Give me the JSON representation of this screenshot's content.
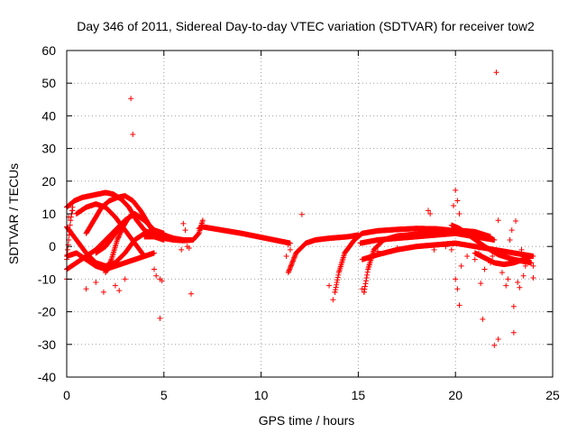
{
  "chart_data": {
    "type": "scatter",
    "title": "Day 346 of 2011, Sidereal Day-to-day VTEC variation (SDTVAR) for receiver tow2",
    "xlabel": "GPS time / hours",
    "ylabel": "SDTVAR / TECUs",
    "xlim": [
      0,
      25
    ],
    "ylim": [
      -40,
      60
    ],
    "xticks": [
      0,
      5,
      10,
      15,
      20,
      25
    ],
    "yticks": [
      -40,
      -30,
      -20,
      -10,
      0,
      10,
      20,
      30,
      40,
      50,
      60
    ],
    "grid": true,
    "marker": "+",
    "color": "#ff0000",
    "series": [
      {
        "name": "tow2",
        "points": [
          [
            3.3,
            45.3
          ],
          [
            3.4,
            34.3
          ],
          [
            22.1,
            53.3
          ],
          [
            4.8,
            -22.0
          ],
          [
            6.4,
            -14.5
          ],
          [
            4.8,
            -10.0
          ],
          [
            4.9,
            -10.5
          ],
          [
            12.1,
            9.8
          ],
          [
            13.7,
            -16.3
          ],
          [
            13.8,
            -14.0
          ],
          [
            18.6,
            11.0
          ],
          [
            18.7,
            10.0
          ],
          [
            19.9,
            12.5
          ],
          [
            20.0,
            17.2
          ],
          [
            20.1,
            14.0
          ],
          [
            20.2,
            10.0
          ],
          [
            20.1,
            -13.0
          ],
          [
            20.2,
            -18.0
          ],
          [
            20.0,
            -10.0
          ],
          [
            21.4,
            -22.3
          ],
          [
            22.0,
            -30.3
          ],
          [
            22.2,
            -28.4
          ],
          [
            23.0,
            -26.4
          ],
          [
            23.0,
            -18.4
          ],
          [
            22.6,
            -12.0
          ],
          [
            23.1,
            7.8
          ],
          [
            22.9,
            5.0
          ],
          [
            22.2,
            8.0
          ],
          [
            19.8,
            -1.0
          ],
          [
            20.3,
            -6.0
          ],
          [
            21.0,
            -4.0
          ],
          [
            21.5,
            -7.0
          ],
          [
            21.8,
            -5.0
          ],
          [
            22.4,
            -8.0
          ],
          [
            22.7,
            -10.0
          ],
          [
            23.2,
            -11.0
          ],
          [
            23.5,
            -9.0
          ],
          [
            24.0,
            -6.0
          ],
          [
            23.8,
            -3.0
          ],
          [
            23.4,
            -1.0
          ],
          [
            23.6,
            -6.0
          ],
          [
            21.9,
            -3.0
          ],
          [
            21.2,
            -2.0
          ],
          [
            20.6,
            -3.0
          ],
          [
            22.8,
            2.0
          ],
          [
            24.0,
            -9.6
          ],
          [
            23.3,
            -12.6
          ],
          [
            21.3,
            -11.3
          ],
          [
            6.0,
            7.0
          ],
          [
            6.1,
            5.0
          ],
          [
            6.2,
            0.0
          ],
          [
            5.9,
            -1.0
          ],
          [
            6.3,
            -0.5
          ],
          [
            4.9,
            3.0
          ],
          [
            4.5,
            -7.0
          ],
          [
            4.6,
            -9.0
          ],
          [
            1.0,
            -13.0
          ],
          [
            1.5,
            -11.0
          ],
          [
            1.9,
            -14.0
          ],
          [
            2.5,
            -12.0
          ],
          [
            3.0,
            -10.0
          ],
          [
            2.7,
            -13.5
          ],
          [
            0.2,
            13.0
          ],
          [
            0.3,
            11.0
          ],
          [
            0.1,
            9.0
          ],
          [
            11.4,
            0.5
          ],
          [
            11.5,
            -1.0
          ],
          [
            11.3,
            -3.0
          ],
          [
            13.5,
            -12.0
          ],
          [
            15.2,
            -13.0
          ],
          [
            15.3,
            -14.0
          ],
          [
            18.9,
            -1.0
          ],
          [
            19.5,
            0.0
          ],
          [
            17.0,
            -0.5
          ],
          [
            16.0,
            -1.5
          ]
        ],
        "tracks": [
          {
            "x": [
              6.8,
              7.0,
              8.0,
              9.0,
              10.0,
              11.0,
              11.5
            ],
            "y": [
              5.5,
              6.0,
              5.0,
              4.0,
              2.8,
              1.6,
              1.0
            ]
          },
          {
            "x": [
              11.4,
              11.8,
              12.3,
              12.8,
              13.5,
              14.5,
              15.0
            ],
            "y": [
              -8.0,
              -2.0,
              1.0,
              2.0,
              2.5,
              3.0,
              3.5
            ]
          },
          {
            "x": [
              13.8,
              14.0,
              14.3,
              14.8,
              15.2,
              16.0,
              17.0,
              18.0,
              19.0,
              19.7
            ],
            "y": [
              -14.0,
              -8.0,
              -2.0,
              2.0,
              4.0,
              4.8,
              5.2,
              5.5,
              5.4,
              5.0
            ]
          },
          {
            "x": [
              15.3,
              15.5,
              15.8,
              16.3,
              17.0,
              18.0,
              19.0,
              20.0,
              21.0,
              21.8
            ],
            "y": [
              -14.0,
              -7.0,
              -1.0,
              2.0,
              3.2,
              3.8,
              4.5,
              5.0,
              4.5,
              3.0
            ]
          },
          {
            "x": [
              15.2,
              16.0,
              17.0,
              18.0,
              19.0,
              20.0,
              21.0,
              22.0,
              23.0,
              24.0
            ],
            "y": [
              -4.0,
              -2.5,
              -1.0,
              0.0,
              0.5,
              1.0,
              0.0,
              -1.0,
              -2.0,
              -3.0
            ]
          },
          {
            "x": [
              15.1,
              16.0,
              17.0,
              18.0,
              19.0,
              20.0,
              21.0,
              22.0
            ],
            "y": [
              1.0,
              2.0,
              2.5,
              3.0,
              3.5,
              4.0,
              3.0,
              2.0
            ]
          },
          {
            "x": [
              19.8,
              20.2,
              20.8,
              21.5,
              22.2,
              23.0,
              23.9
            ],
            "y": [
              6.5,
              5.5,
              3.0,
              0.0,
              -2.5,
              -4.0,
              -5.0
            ]
          },
          {
            "x": [
              21.0,
              21.5,
              22.0,
              22.5,
              23.0,
              23.5,
              23.9
            ],
            "y": [
              -2.0,
              -3.5,
              -5.0,
              -5.5,
              -5.0,
              -4.0,
              -3.0
            ]
          },
          {
            "x": [
              0.0,
              0.5,
              1.0,
              1.5,
              2.0,
              2.5,
              3.0,
              3.5,
              4.0,
              4.5,
              5.0
            ],
            "y": [
              -7.0,
              -5.0,
              -3.0,
              -1.0,
              2.0,
              5.0,
              8.0,
              10.0,
              8.0,
              5.0,
              3.0
            ]
          },
          {
            "x": [
              0.0,
              0.4,
              0.8,
              1.2,
              1.6,
              2.0,
              2.4,
              2.8,
              3.2,
              3.6,
              4.0,
              4.5,
              5.0
            ],
            "y": [
              12.0,
              14.0,
              15.0,
              15.5,
              16.0,
              16.5,
              16.0,
              14.5,
              12.0,
              8.0,
              5.0,
              3.0,
              2.0
            ]
          },
          {
            "x": [
              0.0,
              0.5,
              1.0,
              1.5,
              2.0,
              2.5,
              3.0,
              3.5,
              4.0,
              4.5,
              5.0
            ],
            "y": [
              6.0,
              2.0,
              -2.0,
              -5.0,
              -6.0,
              -5.0,
              -2.0,
              2.0,
              4.0,
              5.0,
              4.0
            ]
          },
          {
            "x": [
              0.0,
              0.5,
              1.0,
              1.5,
              2.0,
              2.5,
              3.0,
              3.5,
              4.0,
              4.5
            ],
            "y": [
              -3.0,
              -2.0,
              -4.0,
              -6.0,
              -7.0,
              -6.0,
              -5.0,
              -4.0,
              -3.0,
              -2.0
            ]
          },
          {
            "x": [
              1.0,
              1.4,
              1.8,
              2.2,
              2.6,
              3.0,
              3.4,
              3.8,
              4.2,
              4.6
            ],
            "y": [
              4.0,
              8.0,
              12.0,
              14.0,
              15.0,
              15.5,
              14.0,
              11.0,
              7.0,
              3.0
            ]
          },
          {
            "x": [
              0.5,
              1.0,
              1.5,
              2.0,
              2.5,
              3.0,
              3.5,
              4.0
            ],
            "y": [
              10.0,
              12.0,
              13.0,
              12.0,
              9.0,
              5.0,
              1.0,
              -3.0
            ]
          },
          {
            "x": [
              1.5,
              2.0,
              2.5,
              3.0,
              3.5,
              4.0,
              4.5,
              5.0,
              5.5,
              6.0,
              6.5
            ],
            "y": [
              -2.0,
              0.0,
              4.0,
              8.0,
              10.0,
              8.0,
              5.0,
              3.5,
              2.5,
              2.0,
              2.0
            ]
          },
          {
            "x": [
              2.0,
              2.3,
              2.6,
              2.9,
              3.2,
              3.5
            ],
            "y": [
              -8.0,
              -4.0,
              2.0,
              6.0,
              9.0,
              10.0
            ]
          },
          {
            "x": [
              4.0,
              4.5,
              5.0,
              5.5,
              6.0,
              6.5,
              6.8,
              7.0
            ],
            "y": [
              3.0,
              3.0,
              2.5,
              2.0,
              1.8,
              2.0,
              4.0,
              8.0
            ]
          },
          {
            "x": [
              0.0,
              0.0,
              0.1,
              0.2,
              0.3
            ],
            "y": [
              -10.0,
              -4.0,
              2.0,
              8.0,
              12.0
            ]
          }
        ]
      }
    ]
  }
}
